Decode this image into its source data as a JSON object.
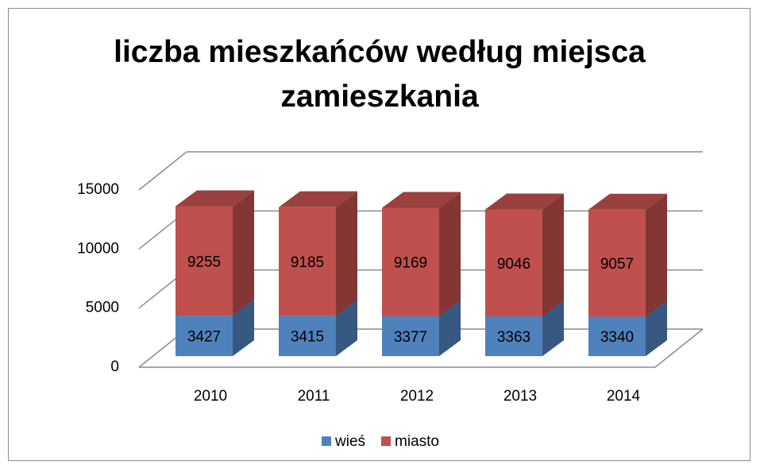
{
  "chart_data": {
    "type": "bar3d_stacked",
    "title": "liczba mieszkańców według miejsca zamieszkania",
    "categories": [
      "2010",
      "2011",
      "2012",
      "2013",
      "2014"
    ],
    "series": [
      {
        "name": "wieś",
        "color": "#4f81bd",
        "values": [
          3427,
          3415,
          3377,
          3363,
          3340
        ]
      },
      {
        "name": "miasto",
        "color": "#c0504d",
        "values": [
          9255,
          9185,
          9169,
          9046,
          9057
        ]
      }
    ],
    "ylim": [
      0,
      15000
    ],
    "yticks": [
      0,
      5000,
      10000,
      15000
    ],
    "grid": true,
    "legend": "bottom"
  }
}
